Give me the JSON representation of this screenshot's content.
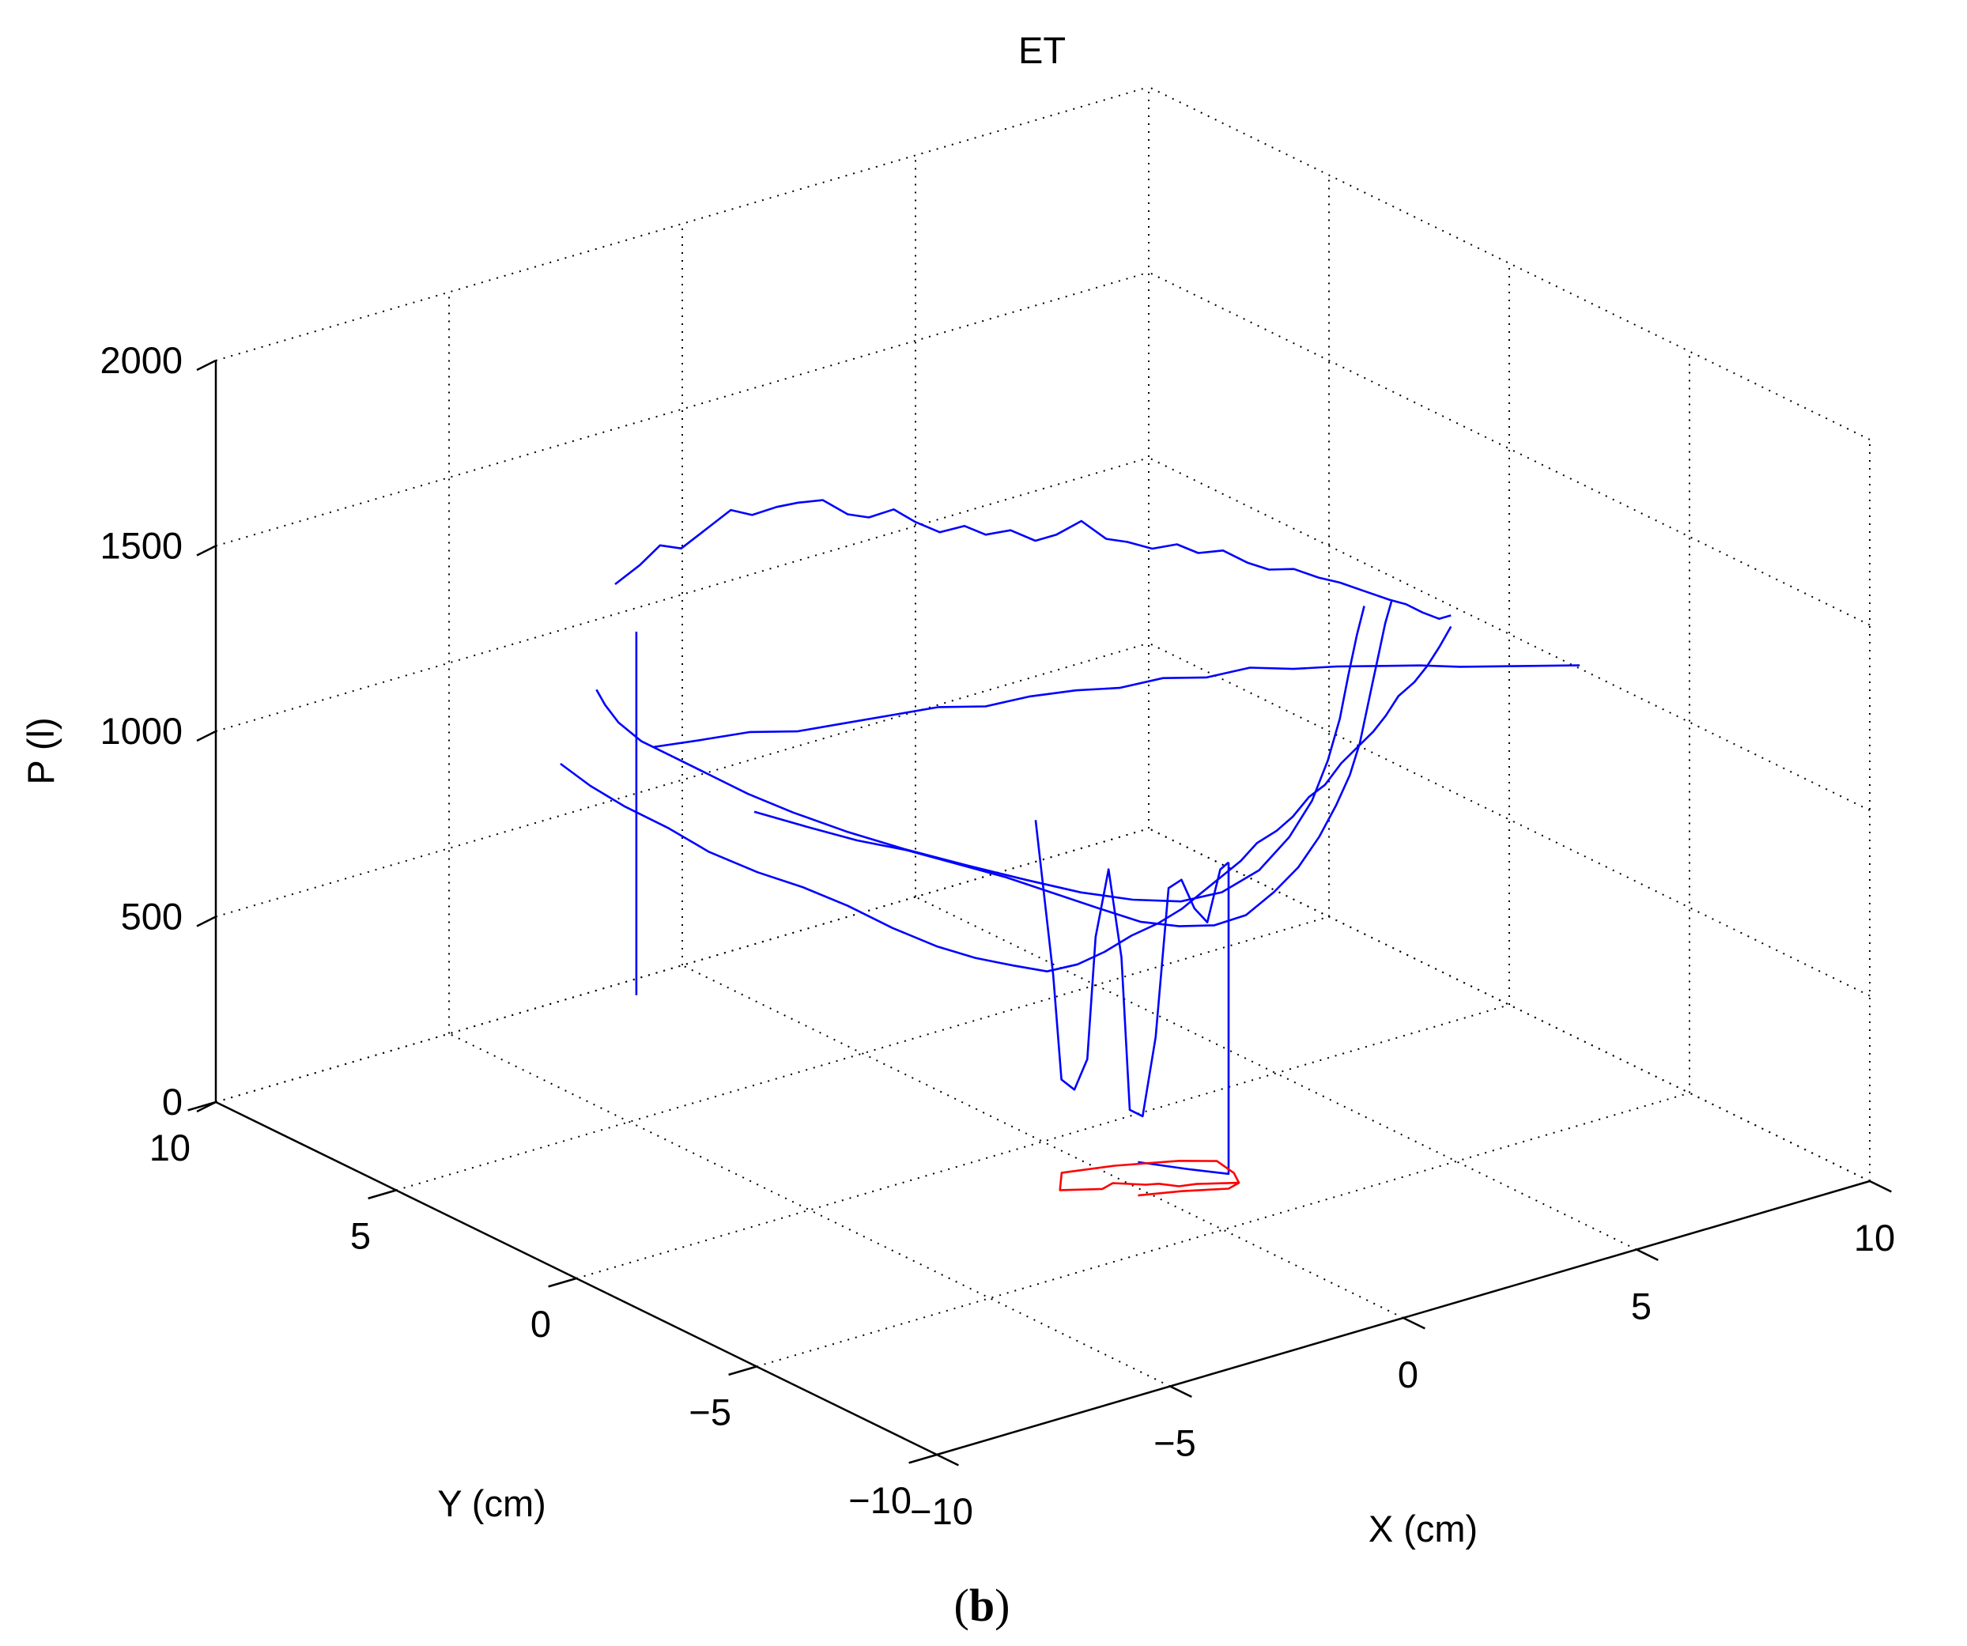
{
  "chart_data": {
    "type": "line3d",
    "title": "ET",
    "panel_label": {
      "open": "(",
      "letter": "b",
      "close": ")"
    },
    "xlabel": "X (cm)",
    "ylabel": "Y (cm)",
    "zlabel": "P (l)",
    "xlim": [
      -10,
      10
    ],
    "ylim": [
      -10,
      10
    ],
    "zlim": [
      0,
      2000
    ],
    "xticks": [
      -10,
      -5,
      0,
      5,
      10
    ],
    "yticks": [
      -10,
      -5,
      0,
      5,
      10
    ],
    "zticks": [
      0,
      500,
      1000,
      1500,
      2000
    ],
    "xtick_labels": [
      "−10",
      "−5",
      "0",
      "5",
      "10"
    ],
    "ytick_labels": [
      "−10",
      "−5",
      "0",
      "5",
      "10"
    ],
    "ztick_labels": [
      "0",
      "500",
      "1000",
      "1500",
      "2000"
    ],
    "grid": true,
    "colors": {
      "pressure": "#0000ff",
      "cop": "#ff0000",
      "axes": "#000000"
    },
    "series": [
      {
        "color": "#0000ff",
        "points": [
          [
            -2.6,
            8.5,
            1195
          ],
          [
            -2.3,
            8.2,
            1250
          ],
          [
            -2.1,
            7.9,
            1310
          ],
          [
            -1.8,
            7.7,
            1300
          ],
          [
            -1.5,
            7.4,
            1355
          ],
          [
            -1.2,
            7.1,
            1410
          ],
          [
            -0.9,
            6.9,
            1395
          ],
          [
            -0.6,
            6.6,
            1420
          ],
          [
            -0.3,
            6.4,
            1430
          ],
          [
            0.0,
            6.1,
            1440
          ],
          [
            0.3,
            5.8,
            1405
          ],
          [
            0.6,
            5.6,
            1395
          ],
          [
            0.9,
            5.3,
            1420
          ],
          [
            1.2,
            5.1,
            1385
          ],
          [
            1.5,
            4.8,
            1360
          ],
          [
            1.8,
            4.5,
            1380
          ],
          [
            2.1,
            4.3,
            1355
          ],
          [
            2.4,
            4.0,
            1370
          ],
          [
            2.7,
            3.7,
            1345
          ],
          [
            3.0,
            3.5,
            1360
          ],
          [
            3.3,
            3.2,
            1400
          ],
          [
            3.6,
            2.9,
            1355
          ],
          [
            3.9,
            2.7,
            1345
          ],
          [
            4.2,
            2.4,
            1330
          ],
          [
            4.5,
            2.1,
            1345
          ],
          [
            4.8,
            1.9,
            1320
          ],
          [
            5.1,
            1.6,
            1330
          ],
          [
            5.4,
            1.3,
            1300
          ],
          [
            5.7,
            1.1,
            1280
          ],
          [
            6.0,
            0.8,
            1285
          ],
          [
            6.3,
            0.5,
            1265
          ],
          [
            6.6,
            0.3,
            1250
          ],
          [
            6.9,
            0.0,
            1230
          ],
          [
            7.2,
            -0.3,
            1210
          ],
          [
            7.4,
            -0.5,
            1200
          ],
          [
            7.6,
            -0.7,
            1180
          ],
          [
            7.8,
            -0.9,
            1165
          ],
          [
            7.9,
            -1.1,
            1180
          ]
        ]
      },
      {
        "color": "#0000ff",
        "points": [
          [
            7.9,
            -1.1,
            1150
          ],
          [
            7.5,
            -1.3,
            1120
          ],
          [
            7.0,
            -1.6,
            1100
          ],
          [
            6.5,
            -1.9,
            1090
          ],
          [
            6.0,
            -2.1,
            1080
          ],
          [
            5.5,
            -2.4,
            1060
          ],
          [
            5.0,
            -2.7,
            1050
          ],
          [
            4.5,
            -2.9,
            1035
          ],
          [
            4.0,
            -3.1,
            1020
          ],
          [
            3.5,
            -3.3,
            990
          ],
          [
            3.0,
            -3.5,
            985
          ],
          [
            2.5,
            -3.7,
            960
          ],
          [
            2.0,
            -3.9,
            950
          ],
          [
            1.5,
            -4.0,
            940
          ],
          [
            1.0,
            -4.2,
            920
          ],
          [
            0.5,
            -4.3,
            900
          ],
          [
            0.0,
            -4.4,
            880
          ],
          [
            -0.5,
            -4.5,
            860
          ],
          [
            -1.0,
            -4.5,
            840
          ],
          [
            -1.5,
            -4.4,
            820
          ],
          [
            -2.0,
            -4.3,
            790
          ],
          [
            -2.5,
            -4.2,
            770
          ],
          [
            -3.0,
            -4.0,
            760
          ],
          [
            -3.5,
            -3.7,
            780
          ],
          [
            -4.0,
            -3.3,
            800
          ],
          [
            -4.5,
            -2.9,
            830
          ],
          [
            -5.0,
            -2.3,
            870
          ],
          [
            -5.5,
            -1.7,
            920
          ],
          [
            -6.0,
            -1.1,
            960
          ],
          [
            -6.5,
            -0.5,
            990
          ],
          [
            -7.0,
            0.2,
            1030
          ],
          [
            -7.4,
            0.8,
            1080
          ],
          [
            -7.8,
            1.5,
            1120
          ],
          [
            -8.0,
            2.2,
            1150
          ],
          [
            -8.1,
            2.9,
            1180
          ]
        ]
      },
      {
        "color": "#0000ff",
        "points": [
          [
            -6.8,
            2.0,
            1220
          ],
          [
            -6.2,
            1.5,
            1240
          ],
          [
            -5.5,
            1.0,
            1260
          ],
          [
            -4.8,
            0.6,
            1255
          ],
          [
            -4.1,
            0.2,
            1270
          ],
          [
            -3.4,
            -0.2,
            1285
          ],
          [
            -2.7,
            -0.6,
            1300
          ],
          [
            -2.0,
            -1.0,
            1295
          ],
          [
            -1.3,
            -1.3,
            1310
          ],
          [
            -0.6,
            -1.7,
            1320
          ],
          [
            0.1,
            -2.0,
            1315
          ],
          [
            0.8,
            -2.3,
            1330
          ],
          [
            1.5,
            -2.6,
            1320
          ],
          [
            2.2,
            -2.9,
            1335
          ],
          [
            2.9,
            -3.2,
            1320
          ],
          [
            3.6,
            -3.5,
            1315
          ],
          [
            4.3,
            -3.7,
            1300
          ],
          [
            5.0,
            -4.0,
            1290
          ],
          [
            5.7,
            -4.2,
            1270
          ],
          [
            6.4,
            -4.4,
            1255
          ],
          [
            7.1,
            -4.6,
            1240
          ],
          [
            7.8,
            -4.8,
            1225
          ]
        ]
      },
      {
        "color": "#0000ff",
        "points": [
          [
            -5.8,
            0.5,
            1080
          ],
          [
            -5.2,
            -0.2,
            1050
          ],
          [
            -4.6,
            -0.8,
            1020
          ],
          [
            -4.0,
            -1.4,
            1000
          ],
          [
            -3.4,
            -2.0,
            970
          ],
          [
            -2.8,
            -2.6,
            940
          ],
          [
            -2.2,
            -3.1,
            900
          ],
          [
            -1.6,
            -3.6,
            860
          ],
          [
            -1.0,
            -4.0,
            820
          ],
          [
            -0.4,
            -4.3,
            800
          ],
          [
            0.2,
            -4.5,
            790
          ],
          [
            0.8,
            -4.6,
            800
          ],
          [
            1.4,
            -4.6,
            840
          ],
          [
            2.0,
            -4.5,
            880
          ],
          [
            2.6,
            -4.3,
            930
          ],
          [
            3.2,
            -4.0,
            980
          ],
          [
            3.8,
            -3.6,
            1020
          ],
          [
            4.4,
            -3.1,
            1060
          ],
          [
            5.0,
            -2.5,
            1090
          ],
          [
            5.6,
            -1.9,
            1120
          ],
          [
            6.2,
            -1.3,
            1150
          ],
          [
            6.8,
            -0.7,
            1180
          ],
          [
            7.4,
            -0.1,
            1190
          ]
        ]
      },
      {
        "color": "#0000ff",
        "points": [
          [
            -6.4,
            4.1,
            1260
          ],
          [
            -6.6,
            3.6,
            1250
          ],
          [
            -6.7,
            3.1,
            1230
          ],
          [
            -6.6,
            2.6,
            1200
          ],
          [
            -6.4,
            2.0,
            1180
          ],
          [
            -6.1,
            1.4,
            1150
          ],
          [
            -5.7,
            0.8,
            1110
          ],
          [
            -5.2,
            0.2,
            1070
          ],
          [
            -4.6,
            -0.5,
            1030
          ],
          [
            -3.9,
            -1.2,
            990
          ],
          [
            -3.1,
            -1.9,
            950
          ],
          [
            -2.3,
            -2.5,
            910
          ],
          [
            -1.5,
            -3.0,
            870
          ],
          [
            -0.7,
            -3.4,
            840
          ],
          [
            0.1,
            -3.7,
            820
          ],
          [
            0.9,
            -3.8,
            820
          ],
          [
            1.7,
            -3.8,
            850
          ],
          [
            2.5,
            -3.6,
            900
          ],
          [
            3.3,
            -3.2,
            950
          ],
          [
            4.1,
            -2.6,
            1000
          ],
          [
            4.9,
            -1.9,
            1050
          ],
          [
            5.7,
            -1.1,
            1100
          ],
          [
            6.5,
            -0.3,
            1140
          ],
          [
            7.2,
            0.4,
            1160
          ]
        ]
      },
      {
        "color": "#0000ff",
        "points": [
          [
            -1.7,
            -2.0,
            1025
          ],
          [
            -1.4,
            -2.1,
            600
          ],
          [
            -1.3,
            -2.2,
            320
          ],
          [
            -1.1,
            -2.3,
            290
          ],
          [
            -0.9,
            -2.4,
            370
          ],
          [
            -0.8,
            -2.5,
            700
          ],
          [
            -0.6,
            -2.6,
            880
          ],
          [
            -0.4,
            -2.7,
            640
          ],
          [
            -0.3,
            -2.8,
            230
          ],
          [
            -0.1,
            -2.9,
            210
          ],
          [
            0.1,
            -3.0,
            420
          ],
          [
            0.3,
            -3.1,
            820
          ],
          [
            0.5,
            -3.2,
            840
          ],
          [
            0.7,
            -3.3,
            760
          ],
          [
            0.9,
            -3.4,
            720
          ],
          [
            1.1,
            -3.5,
            860
          ],
          [
            1.2,
            -3.6,
            880
          ]
        ]
      },
      {
        "color": "#0000ff",
        "points": [
          [
            1.2,
            -3.6,
            880
          ],
          [
            1.2,
            -3.6,
            40
          ],
          [
            0.6,
            -3.3,
            60
          ],
          [
            -0.2,
            -2.9,
            90
          ]
        ]
      },
      {
        "color": "#0000ff",
        "points": [
          [
            -5.7,
            3.9,
            1400
          ],
          [
            -5.7,
            3.9,
            420
          ]
        ]
      },
      {
        "color": "#ff0000",
        "points": [
          [
            -0.2,
            -2.9,
            0
          ],
          [
            0.5,
            -3.2,
            0
          ],
          [
            1.2,
            -3.6,
            0
          ],
          [
            1.5,
            -3.5,
            0
          ],
          [
            1.2,
            -3.3,
            0
          ],
          [
            0.9,
            -3.1,
            0
          ],
          [
            0.6,
            -3.0,
            0
          ],
          [
            0.4,
            -2.7,
            0
          ],
          [
            0.2,
            -2.6,
            0
          ],
          [
            0.0,
            -2.4,
            0
          ],
          [
            -0.2,
            -2.2,
            0
          ],
          [
            -0.5,
            -2.3,
            0
          ],
          [
            -0.8,
            -2.1,
            0
          ],
          [
            -1.1,
            -1.9,
            0
          ],
          [
            -0.6,
            -1.3,
            0
          ],
          [
            0.3,
            -1.6,
            0
          ],
          [
            1.3,
            -2.1,
            0
          ],
          [
            1.8,
            -2.5,
            0
          ],
          [
            1.7,
            -3.1,
            0
          ],
          [
            1.5,
            -3.5,
            0
          ]
        ]
      }
    ]
  }
}
